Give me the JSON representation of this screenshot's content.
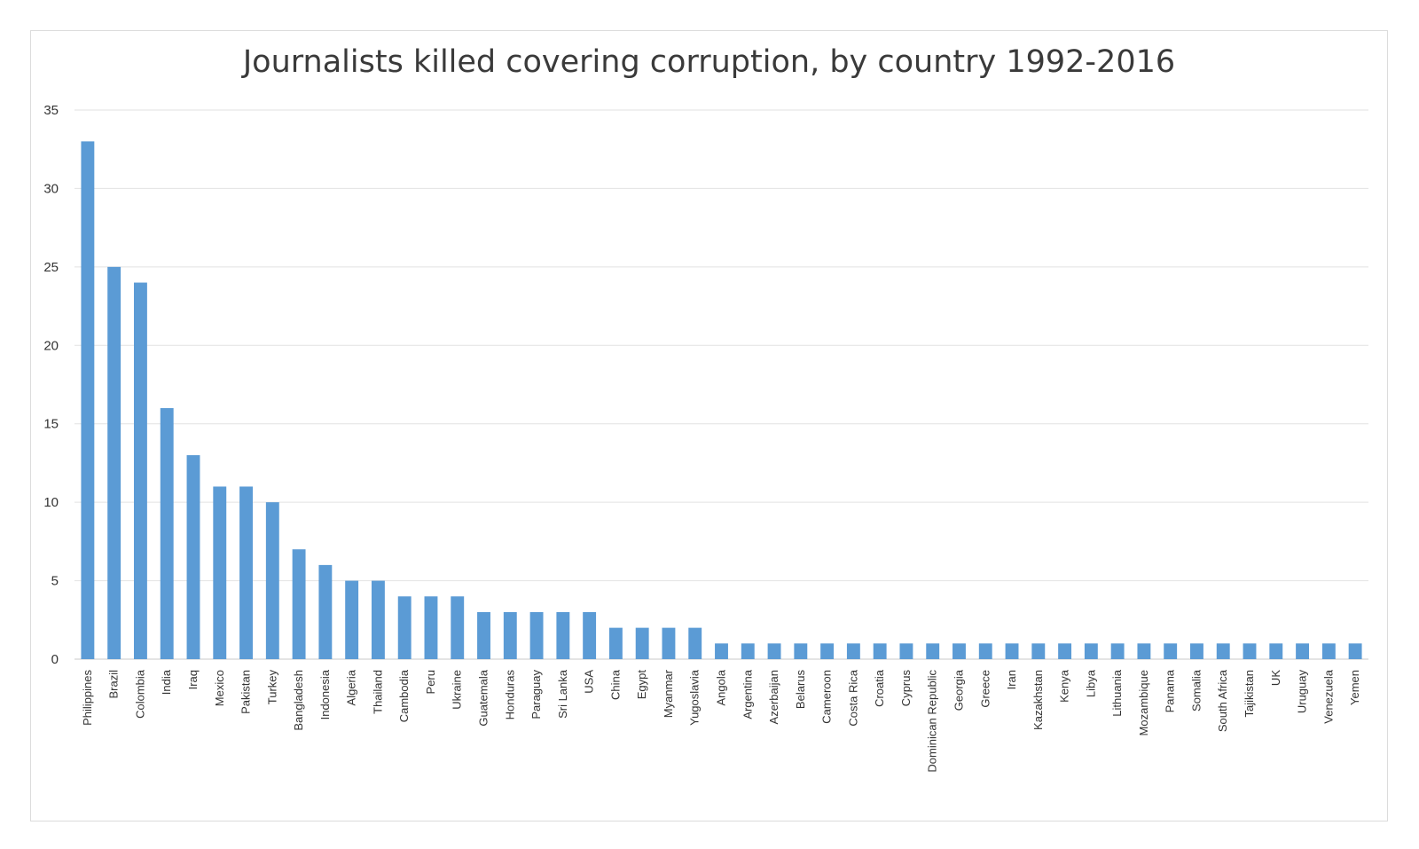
{
  "chart_data": {
    "type": "bar",
    "title": "Journalists killed covering corruption, by country 1992-2016",
    "xlabel": "",
    "ylabel": "",
    "ylim": [
      0,
      35
    ],
    "yticks": [
      0,
      5,
      10,
      15,
      20,
      25,
      30,
      35
    ],
    "grid": true,
    "legend": "none",
    "bar_color": "#5b9bd5",
    "categories": [
      "Philippines",
      "Brazil",
      "Colombia",
      "India",
      "Iraq",
      "Mexico",
      "Pakistan",
      "Turkey",
      "Bangladesh",
      "Indonesia",
      "Algeria",
      "Thailand",
      "Cambodia",
      "Peru",
      "Ukraine",
      "Guatemala",
      "Honduras",
      "Paraguay",
      "Sri Lanka",
      "USA",
      "China",
      "Egypt",
      "Myanmar",
      "Yugoslavia",
      "Angola",
      "Argentina",
      "Azerbaijan",
      "Belarus",
      "Cameroon",
      "Costa Rica",
      "Croatia",
      "Cyprus",
      "Dominican Republic",
      "Georgia",
      "Greece",
      "Iran",
      "Kazakhstan",
      "Kenya",
      "Libya",
      "Lithuania",
      "Mozambique",
      "Panama",
      "Somalia",
      "South Africa",
      "Tajikistan",
      "UK",
      "Uruguay",
      "Venezuela",
      "Yemen"
    ],
    "values": [
      33,
      25,
      24,
      16,
      13,
      11,
      11,
      10,
      7,
      6,
      5,
      5,
      4,
      4,
      4,
      3,
      3,
      3,
      3,
      3,
      2,
      2,
      2,
      2,
      1,
      1,
      1,
      1,
      1,
      1,
      1,
      1,
      1,
      1,
      1,
      1,
      1,
      1,
      1,
      1,
      1,
      1,
      1,
      1,
      1,
      1,
      1,
      1,
      1
    ]
  }
}
